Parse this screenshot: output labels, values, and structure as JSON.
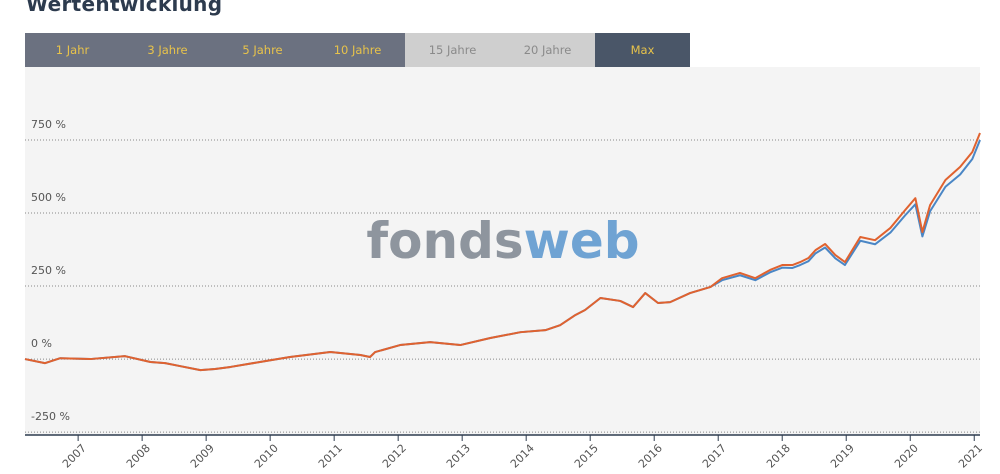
{
  "heading": "Wertentwicklung",
  "buttons": [
    {
      "label": "1 Jahr",
      "state": "enabled"
    },
    {
      "label": "3 Jahre",
      "state": "enabled"
    },
    {
      "label": "5 Jahre",
      "state": "enabled"
    },
    {
      "label": "10 Jahre",
      "state": "enabled"
    },
    {
      "label": "15 Jahre",
      "state": "disabled"
    },
    {
      "label": "20 Jahre",
      "state": "disabled"
    },
    {
      "label": "Max",
      "state": "active"
    }
  ],
  "chart_data": {
    "type": "line",
    "watermark": [
      "fonds",
      "web"
    ],
    "x": [
      2006.17,
      2006.48,
      2006.72,
      2007.19,
      2007.73,
      2008.13,
      2008.36,
      2008.59,
      2008.91,
      2009.14,
      2009.38,
      2009.84,
      2010.31,
      2010.94,
      2011.41,
      2011.56,
      2011.64,
      2012.03,
      2012.5,
      2012.97,
      2013.44,
      2013.91,
      2014.3,
      2014.53,
      2014.77,
      2014.92,
      2015.16,
      2015.47,
      2015.67,
      2015.86,
      2016.06,
      2016.25,
      2016.56,
      2016.88,
      2017.06,
      2017.34,
      2017.58,
      2017.81,
      2018.0,
      2018.16,
      2018.28,
      2018.41,
      2018.52,
      2018.67,
      2018.83,
      2018.98,
      2019.22,
      2019.45,
      2019.69,
      2019.92,
      2020.08,
      2020.19,
      2020.31,
      2020.55,
      2020.78,
      2020.97,
      2021.09
    ],
    "series": [
      {
        "color": "#4a86c5",
        "values": [
          0,
          -14,
          3,
          0,
          10,
          -10,
          -14,
          -24,
          -38,
          -34,
          -27,
          -10,
          7,
          24,
          14,
          7,
          24,
          48,
          58,
          48,
          72,
          92,
          99,
          116,
          151,
          168,
          209,
          199,
          178,
          226,
          192,
          195,
          226,
          247,
          270,
          287,
          270,
          297,
          313,
          312,
          322,
          335,
          362,
          382,
          345,
          322,
          405,
          393,
          433,
          492,
          530,
          420,
          506,
          590,
          632,
          685,
          750
        ]
      },
      {
        "color": "#e0622f",
        "values": [
          0,
          -14,
          3,
          0,
          10,
          -10,
          -14,
          -24,
          -38,
          -34,
          -27,
          -10,
          7,
          24,
          14,
          7,
          24,
          48,
          58,
          48,
          72,
          92,
          99,
          116,
          151,
          168,
          209,
          199,
          178,
          226,
          192,
          195,
          226,
          247,
          277,
          295,
          277,
          305,
          322,
          322,
          332,
          346,
          373,
          394,
          356,
          332,
          418,
          407,
          449,
          510,
          551,
          435,
          527,
          613,
          658,
          709,
          774
        ]
      }
    ],
    "xlim": [
      2006.17,
      2021.09
    ],
    "xticks": [
      2007,
      2008,
      2009,
      2010,
      2011,
      2012,
      2013,
      2014,
      2015,
      2016,
      2017,
      2018,
      2019,
      2020,
      2021
    ],
    "ylim": [
      -260,
      1000
    ],
    "yticks": [
      {
        "value": 750,
        "label": "750 %"
      },
      {
        "value": 500,
        "label": "500 %"
      },
      {
        "value": 250,
        "label": "250 %"
      },
      {
        "value": 0,
        "label": "0 %"
      },
      {
        "value": -250,
        "label": "-250 %"
      }
    ],
    "grid": true
  }
}
